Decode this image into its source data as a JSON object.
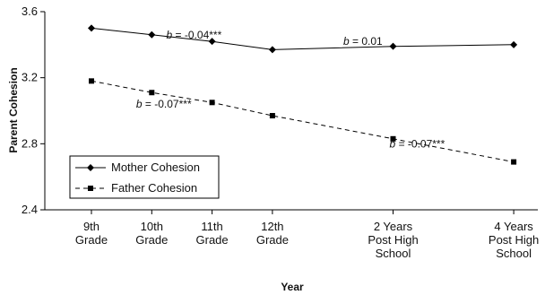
{
  "chart_data": {
    "type": "line",
    "title": "",
    "xlabel": "Year",
    "ylabel": "Parent Cohesion",
    "ylim": [
      2.4,
      3.6
    ],
    "yticks": [
      "2.4",
      "2.8",
      "3.2",
      "3.6"
    ],
    "grid": false,
    "legend_position": "bottom-left",
    "categories": [
      [
        "9th",
        "Grade"
      ],
      [
        "10th",
        "Grade"
      ],
      [
        "11th",
        "Grade"
      ],
      [
        "12th",
        "Grade"
      ],
      [
        "2 Years",
        "Post High",
        "School"
      ],
      [
        "4 Years",
        "Post High",
        "School"
      ]
    ],
    "x_positions": [
      0,
      1,
      2,
      3,
      5,
      7
    ],
    "series": [
      {
        "name": "Mother Cohesion",
        "values": [
          3.5,
          3.46,
          3.42,
          3.37,
          3.39,
          3.4
        ],
        "line": "solid",
        "marker": "diamond"
      },
      {
        "name": "Father Cohesion",
        "values": [
          3.18,
          3.11,
          3.05,
          2.97,
          2.83,
          2.69
        ],
        "line": "dashed",
        "marker": "square"
      }
    ],
    "annotations": [
      {
        "italic": "b",
        "text": " = -0.04***",
        "x": 1.7,
        "y": 3.46
      },
      {
        "italic": "b",
        "text": " = 0.01",
        "x": 4.5,
        "y": 3.42
      },
      {
        "italic": "b",
        "text": " = -0.07***",
        "x": 1.2,
        "y": 3.04
      },
      {
        "italic": "b",
        "text": " = -0.07***",
        "x": 5.4,
        "y": 2.8
      }
    ]
  }
}
